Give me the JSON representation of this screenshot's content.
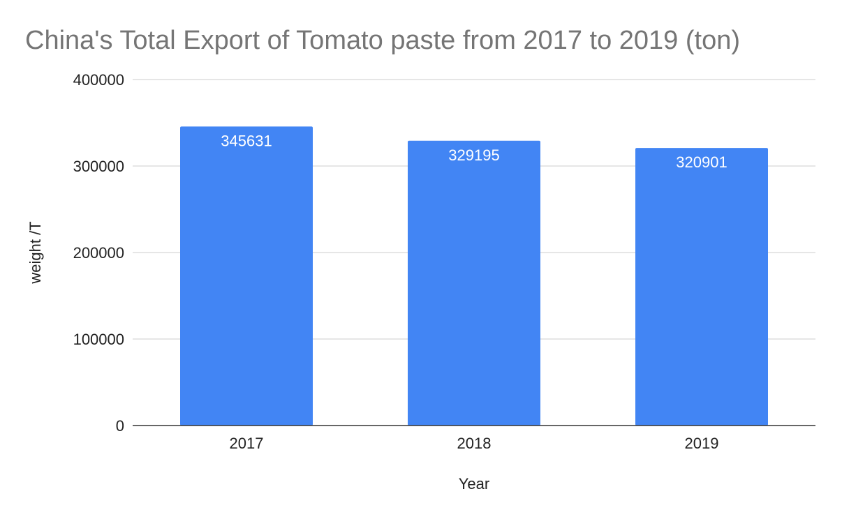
{
  "chart_data": {
    "type": "bar",
    "title": "China's Total Export of Tomato paste from 2017 to 2019 (ton)",
    "xlabel": "Year",
    "ylabel": "weight /T",
    "categories": [
      "2017",
      "2018",
      "2019"
    ],
    "values": [
      345631,
      329195,
      320901
    ],
    "data_labels": [
      "345631",
      "329195",
      "320901"
    ],
    "ylim": [
      0,
      400000
    ],
    "yticks": [
      0,
      100000,
      200000,
      300000,
      400000
    ],
    "ytick_labels": [
      "0",
      "100000",
      "200000",
      "300000",
      "400000"
    ],
    "grid": true,
    "legend": "none",
    "colors": {
      "bar": "#4285f4",
      "grid": "#cccccc",
      "axis": "#333333",
      "title": "#757575",
      "text": "#222222",
      "data_label": "#ffffff"
    }
  }
}
